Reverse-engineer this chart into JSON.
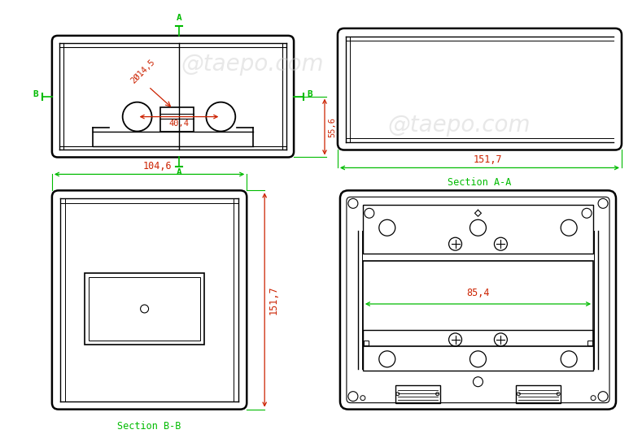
{
  "bg_color": "#ffffff",
  "line_color": "#000000",
  "green_color": "#00bb00",
  "red_color": "#cc2200",
  "watermark": "@taepo.com",
  "watermark_color": "#cccccc",
  "dim_40_4": "40,4",
  "dim_55_6": "55,6",
  "dim_104_6": "104,6",
  "dim_151_7_bb": "151,7",
  "dim_151_7_aa": "151,7",
  "dim_85_4": "85,4",
  "dim_2x14_5": "2Ø14,5",
  "label_A": "A",
  "label_B": "B",
  "section_AA": "Section A-A",
  "section_BB": "Section B-B"
}
